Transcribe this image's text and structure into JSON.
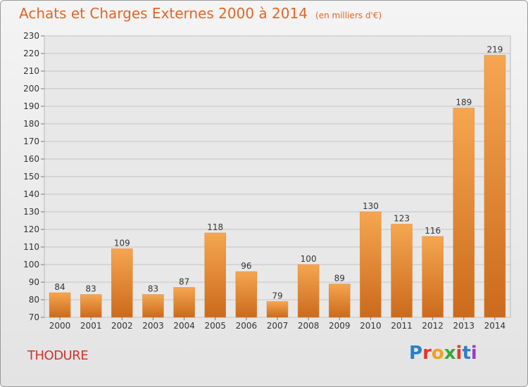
{
  "header": {
    "title": "Achats et Charges Externes 2000 à 2014",
    "unit": "(en milliers d'€)"
  },
  "footer": {
    "commune": "THODURE",
    "logo": "Proxiti"
  },
  "colors": {
    "title": "#e0662a",
    "commune": "#d1332d",
    "bar_light": "#f5a24f",
    "bar_dark": "#cc6a1a"
  },
  "chart_data": {
    "type": "bar",
    "title": "Achats et Charges Externes 2000 à 2014",
    "subtitle": "(en milliers d'€)",
    "categories": [
      "2000",
      "2001",
      "2002",
      "2003",
      "2004",
      "2005",
      "2006",
      "2007",
      "2008",
      "2009",
      "2010",
      "2011",
      "2012",
      "2013",
      "2014"
    ],
    "values": [
      84,
      83,
      109,
      83,
      87,
      118,
      96,
      79,
      100,
      89,
      130,
      123,
      116,
      189,
      219
    ],
    "ylim": [
      70,
      230
    ],
    "yticks": [
      70,
      80,
      90,
      100,
      110,
      120,
      130,
      140,
      150,
      160,
      170,
      180,
      190,
      200,
      210,
      220,
      230
    ],
    "grid": true,
    "legend": "none"
  }
}
